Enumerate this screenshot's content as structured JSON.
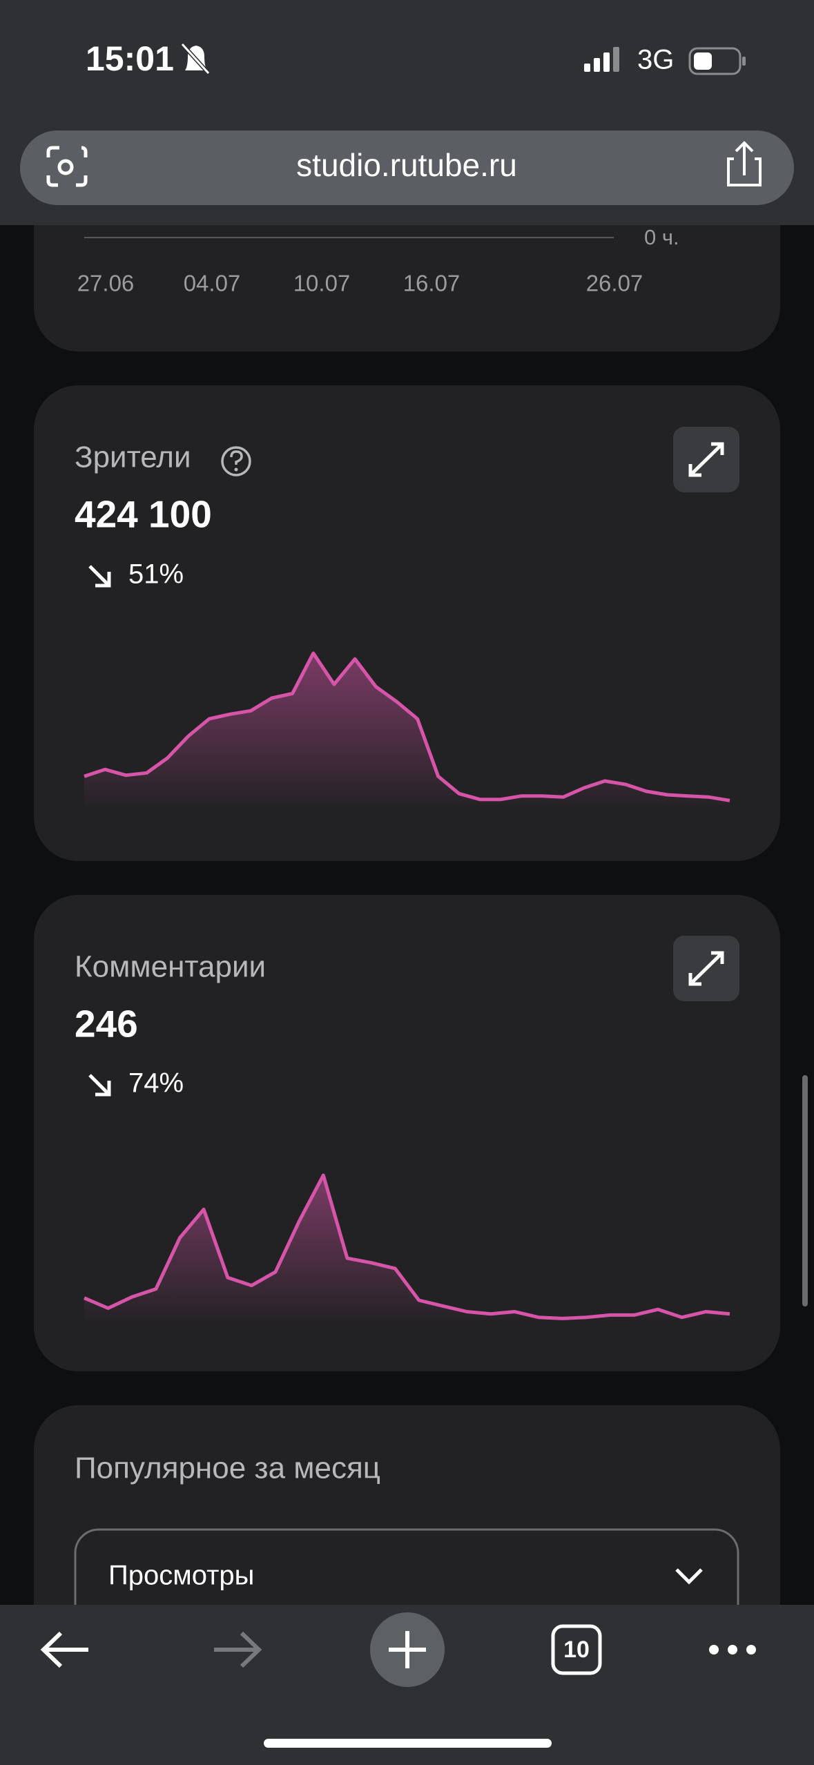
{
  "status_bar": {
    "time": "15:01",
    "network": "3G"
  },
  "browser": {
    "url": "studio.rutube.ru"
  },
  "watch_time_card": {
    "axis_end_label": "0 ч.",
    "dates": [
      "27.06",
      "04.07",
      "10.07",
      "16.07",
      "26.07"
    ]
  },
  "viewers_card": {
    "title": "Зрители",
    "total": "424 100",
    "change": "51%",
    "chart": {
      "type": "area",
      "color": "#d655a8",
      "values": [
        25,
        31,
        26,
        28,
        41,
        60,
        75,
        79,
        82,
        93,
        97,
        132,
        105,
        127,
        103,
        90,
        75,
        25,
        10,
        5,
        5,
        8,
        8,
        7,
        15,
        21,
        18,
        12,
        9,
        8,
        7,
        4
      ]
    }
  },
  "comments_card": {
    "title": "Комментарии",
    "total": "246",
    "change": "74%",
    "chart": {
      "type": "area",
      "color": "#d655a8",
      "values": [
        19,
        10,
        20,
        27,
        72,
        97,
        37,
        30,
        42,
        87,
        127,
        54,
        50,
        45,
        17,
        12,
        7,
        5,
        7,
        2,
        1,
        2,
        4,
        4,
        9,
        2,
        7,
        5
      ]
    }
  },
  "popular_card": {
    "title": "Популярное за месяц",
    "dropdown": "Просмотры"
  },
  "tab_bar": {
    "tab_count": "10"
  }
}
